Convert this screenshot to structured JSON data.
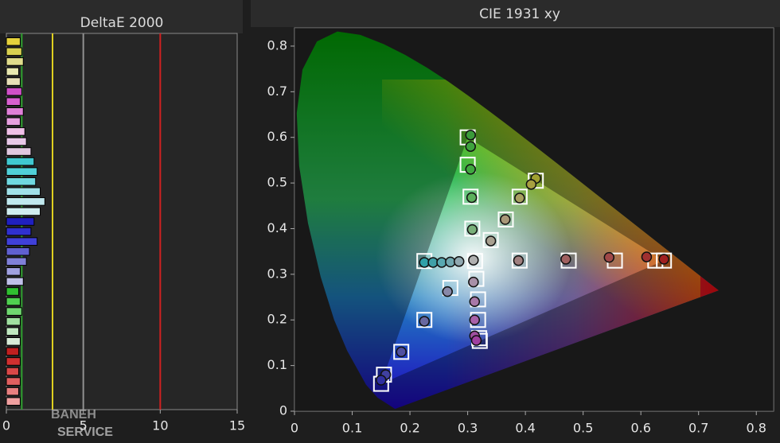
{
  "chart_data": [
    {
      "type": "bar",
      "orientation": "horizontal",
      "title": "DeltaE 2000",
      "values": [
        0.9,
        1.0,
        1.1,
        0.8,
        0.9,
        1.0,
        0.9,
        1.1,
        0.9,
        1.2,
        1.3,
        1.6,
        1.8,
        2.0,
        1.9,
        2.2,
        2.5,
        2.2,
        1.8,
        1.6,
        2.0,
        1.5,
        1.3,
        0.9,
        1.1,
        0.8,
        0.9,
        1.0,
        0.9,
        0.8,
        0.9,
        0.8,
        0.9,
        0.8,
        0.9,
        0.8,
        0.9
      ],
      "colors": [
        "#e6d23c",
        "#d8d050",
        "#e0dc8c",
        "#e8e8b0",
        "#e8e0b8",
        "#d050c8",
        "#d860d0",
        "#e080d8",
        "#e8a0e0",
        "#f0c0e8",
        "#e8c8e8",
        "#e0c8e0",
        "#40c8d0",
        "#50d0d8",
        "#70d8e0",
        "#a0e0e8",
        "#c0e8ee",
        "#d0eef0",
        "#2020c0",
        "#3030d0",
        "#4040d8",
        "#6060d0",
        "#8080d8",
        "#a0a0e0",
        "#c0c0e8",
        "#30c030",
        "#50d050",
        "#70d870",
        "#a0e0a0",
        "#c0e8c0",
        "#d8ecd8",
        "#c02020",
        "#d03030",
        "#d84848",
        "#e06060",
        "#e88080",
        "#f0a0a0"
      ],
      "xlim": [
        0,
        15
      ],
      "xticks": [
        0,
        5,
        10,
        15
      ],
      "reference_lines": [
        {
          "value": 1,
          "color": "#2fa02f"
        },
        {
          "value": 3,
          "color": "#e0d020"
        },
        {
          "value": 5,
          "color": "#909090"
        },
        {
          "value": 10,
          "color": "#d02020"
        }
      ]
    },
    {
      "type": "scatter",
      "title": "CIE 1931 xy",
      "xlim": [
        0,
        0.83
      ],
      "ylim": [
        0,
        0.84
      ],
      "xticks": [
        0,
        0.1,
        0.2,
        0.3,
        0.4,
        0.5,
        0.6,
        0.7,
        0.8
      ],
      "yticks": [
        0,
        0.1,
        0.2,
        0.3,
        0.4,
        0.5,
        0.6,
        0.7,
        0.8
      ],
      "gamut": {
        "x": [
          0.64,
          0.3,
          0.15
        ],
        "y": [
          0.33,
          0.6,
          0.06
        ]
      },
      "series": [
        {
          "marker": "square",
          "color": "#ffffff",
          "x": [
            0.3,
            0.3,
            0.305,
            0.308,
            0.418,
            0.39,
            0.366,
            0.34,
            0.39,
            0.475,
            0.555,
            0.625,
            0.64,
            0.225,
            0.3127,
            0.315,
            0.318,
            0.318,
            0.32,
            0.321,
            0.27,
            0.225,
            0.185,
            0.155,
            0.15
          ],
          "y": [
            0.6,
            0.54,
            0.47,
            0.4,
            0.505,
            0.47,
            0.42,
            0.375,
            0.33,
            0.33,
            0.33,
            0.33,
            0.33,
            0.329,
            0.329,
            0.29,
            0.245,
            0.2,
            0.16,
            0.154,
            0.27,
            0.2,
            0.13,
            0.08,
            0.06
          ]
        },
        {
          "marker": "circle",
          "colors": [
            "#3a9a3a",
            "#3ea23e",
            "#40a840",
            "#5cb05c",
            "#7ab07a",
            "#a0a030",
            "#a8a040",
            "#a8a060",
            "#a89878",
            "#a8a090",
            "#a08080",
            "#a06060",
            "#a04848",
            "#a03030",
            "#a02020",
            "#30a0a8",
            "#40a0a8",
            "#58a8b0",
            "#70a8b0",
            "#90a8b0",
            "#b0b0b0",
            "#a890a8",
            "#a878a8",
            "#a860a8",
            "#a050a0",
            "#a040a0",
            "#8888a8",
            "#6868a0",
            "#5050a0",
            "#4040a0",
            "#3030a0"
          ],
          "x": [
            0.305,
            0.305,
            0.305,
            0.307,
            0.308,
            0.418,
            0.41,
            0.39,
            0.365,
            0.34,
            0.388,
            0.47,
            0.545,
            0.61,
            0.64,
            0.225,
            0.24,
            0.255,
            0.27,
            0.285,
            0.31,
            0.31,
            0.312,
            0.312,
            0.312,
            0.315,
            0.265,
            0.225,
            0.185,
            0.158,
            0.15
          ],
          "y": [
            0.605,
            0.58,
            0.53,
            0.468,
            0.398,
            0.51,
            0.497,
            0.467,
            0.42,
            0.373,
            0.33,
            0.333,
            0.337,
            0.338,
            0.333,
            0.326,
            0.326,
            0.326,
            0.327,
            0.328,
            0.331,
            0.283,
            0.24,
            0.2,
            0.165,
            0.155,
            0.262,
            0.197,
            0.13,
            0.08,
            0.068
          ]
        }
      ]
    }
  ],
  "watermark": [
    "BANEH",
    "SERVICE"
  ]
}
